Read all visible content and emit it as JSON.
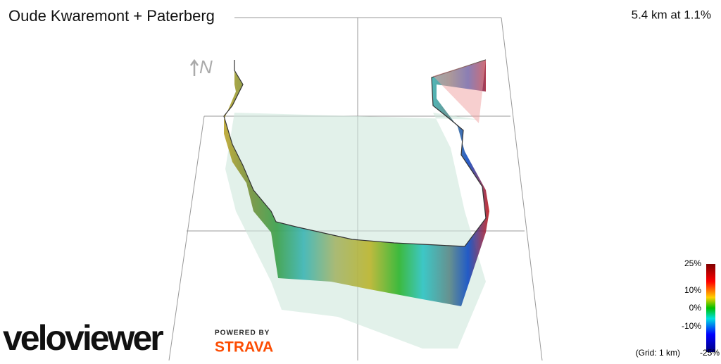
{
  "header": {
    "title": "Oude Kwaremont + Paterberg",
    "stats": "5.4 km at 1.1%"
  },
  "compass": {
    "label": "N"
  },
  "legend": {
    "labels": [
      "25%",
      "10%",
      "0%",
      "-10%",
      "-25%"
    ],
    "grid_note": "(Grid: 1 km)"
  },
  "branding": {
    "logo": "veloviewer",
    "powered_by": "POWERED BY",
    "partner": "STRAVA"
  }
}
